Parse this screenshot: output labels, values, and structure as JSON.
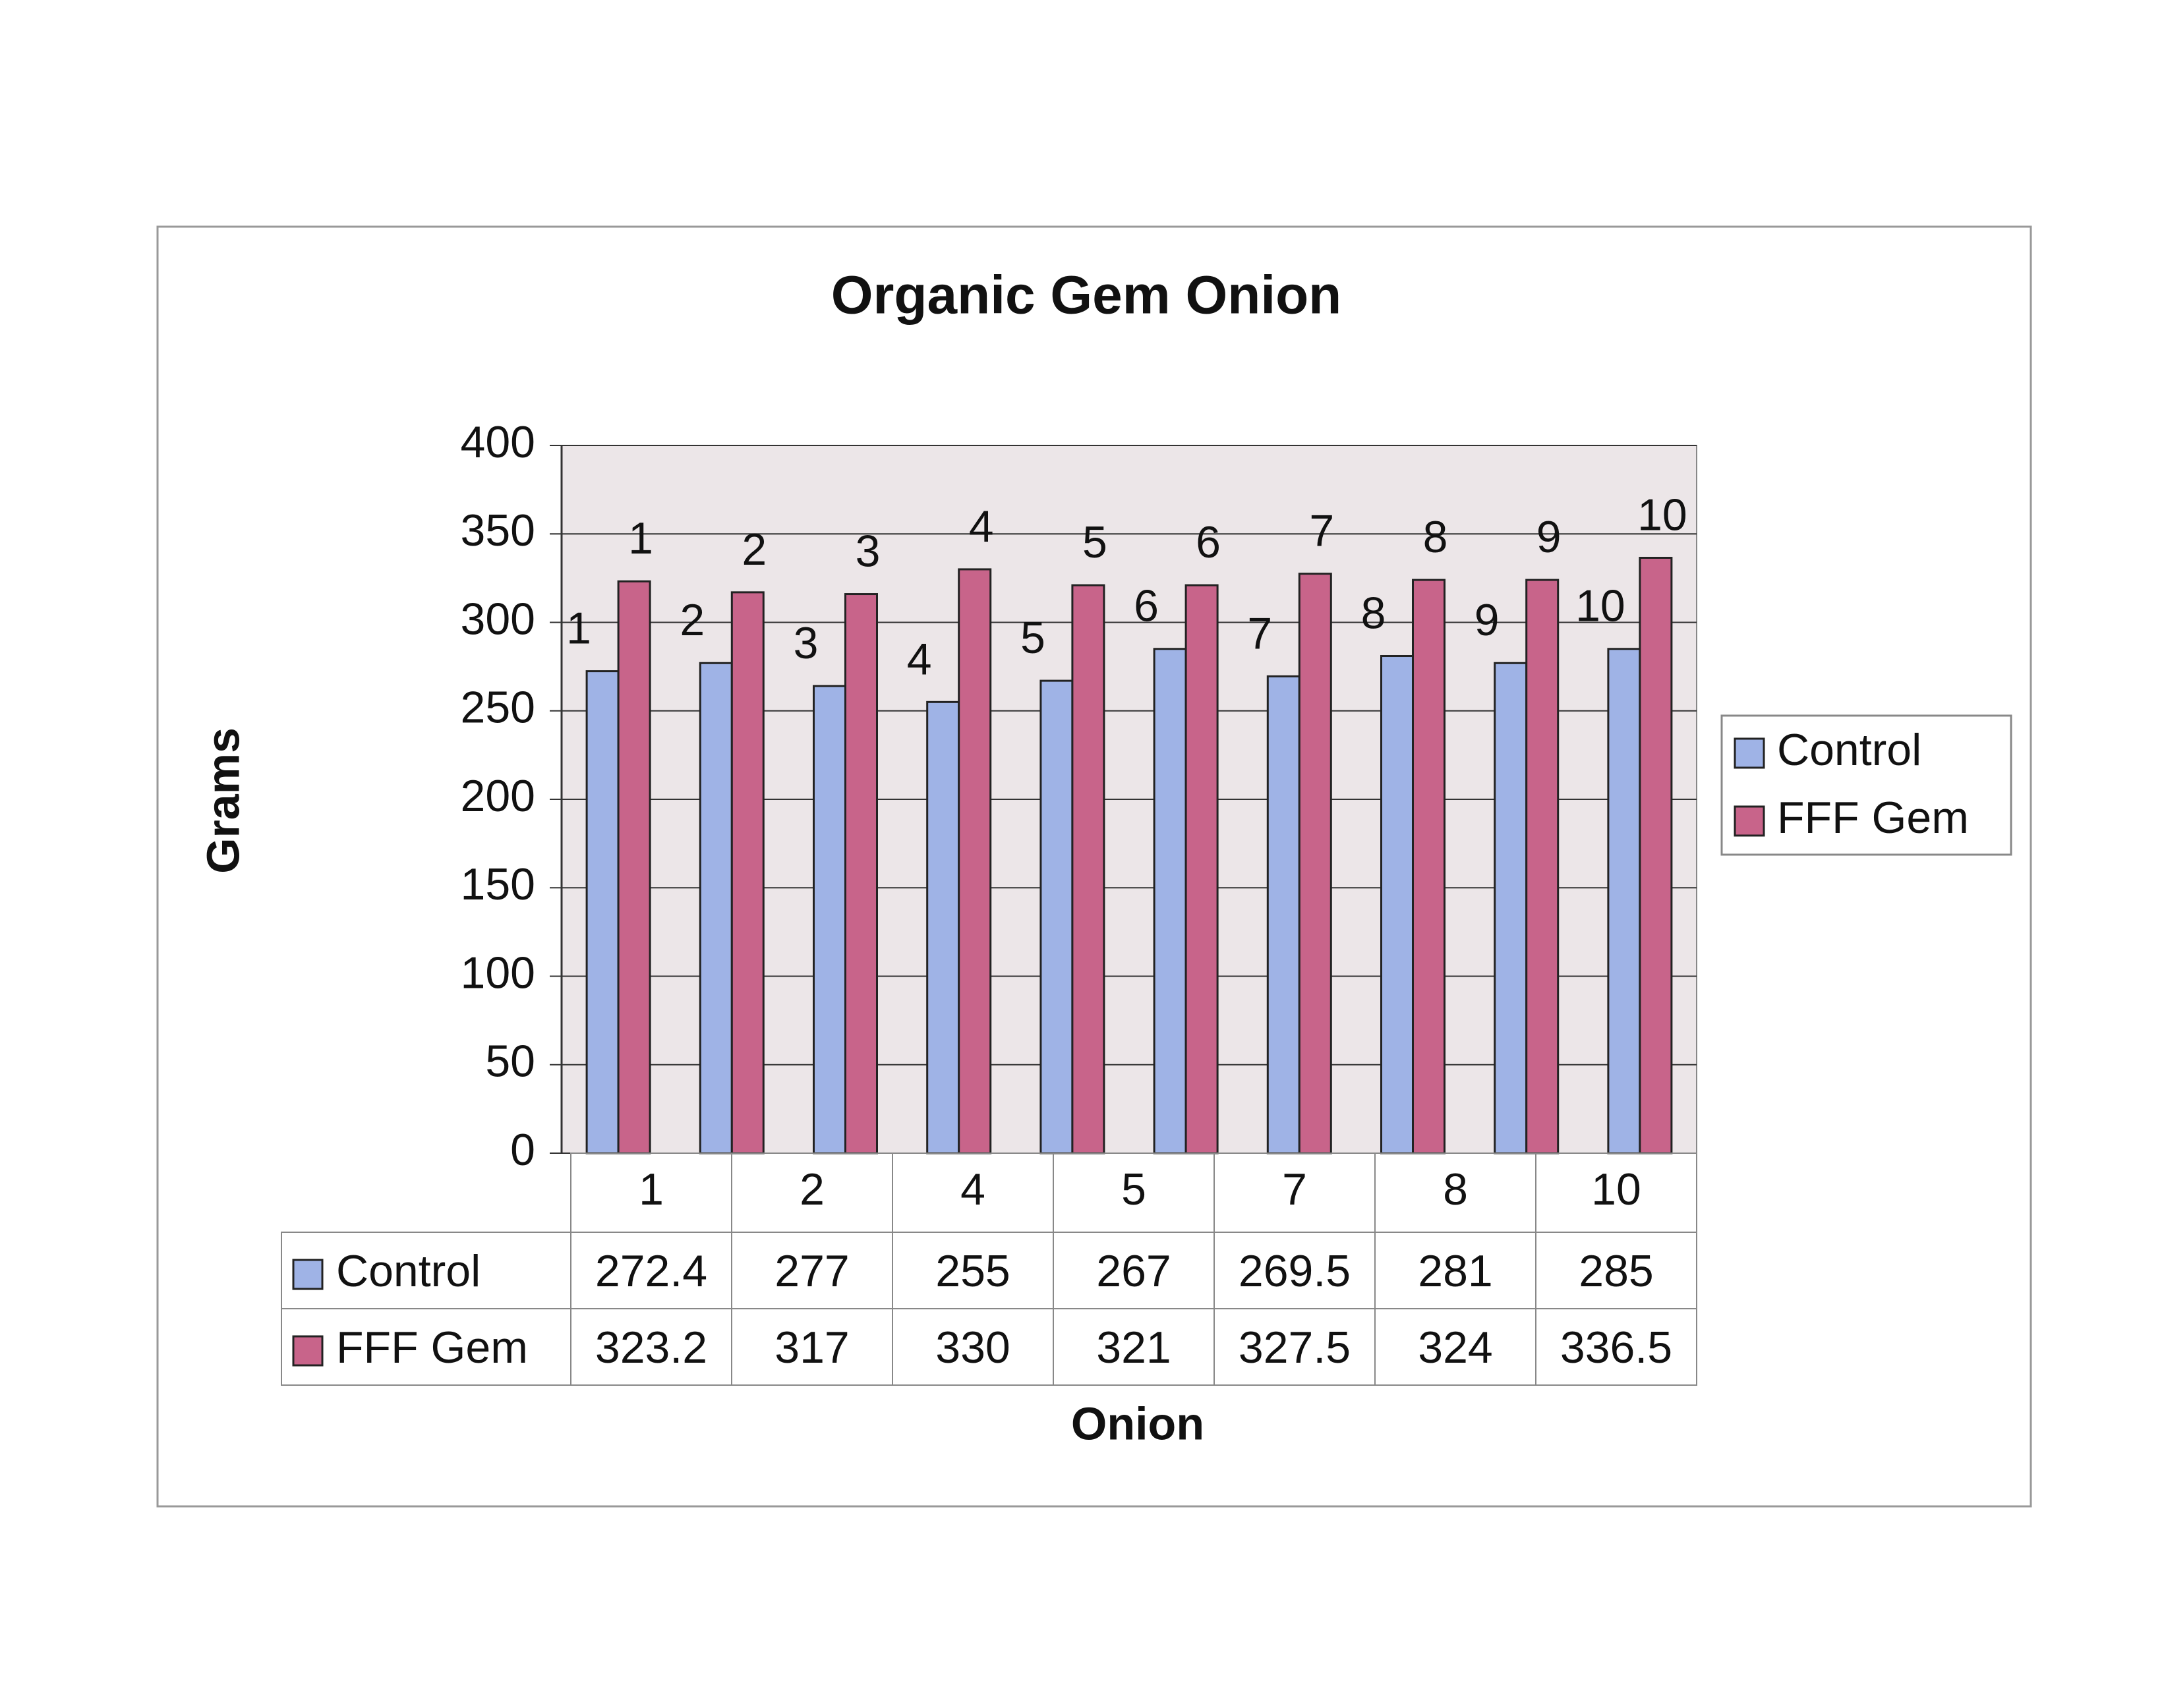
{
  "chart_data": {
    "type": "bar",
    "title": "Organic Gem Onion",
    "y_label": "Grams",
    "x_label": "Onion",
    "categories": [
      "1",
      "2",
      "3",
      "4",
      "5",
      "6",
      "7",
      "8",
      "9",
      "10"
    ],
    "series": [
      {
        "name": "Control",
        "color": "#9fb3e6",
        "values": [
          272.4,
          277,
          264,
          255,
          267,
          285,
          269.5,
          281,
          277,
          285
        ]
      },
      {
        "name": "FFF Gem",
        "color": "#c8648a",
        "values": [
          323.2,
          317,
          316,
          330,
          321,
          321,
          327.5,
          324,
          324,
          336.5
        ]
      }
    ],
    "ylim": [
      0,
      400
    ],
    "yticks": [
      0,
      50,
      100,
      150,
      200,
      250,
      300,
      350,
      400
    ],
    "grid": true,
    "legend": "right",
    "data_table": {
      "columns": [
        "1",
        "2",
        "4",
        "5",
        "7",
        "8",
        "10"
      ],
      "rows": [
        [
          272.4,
          277,
          255,
          267,
          269.5,
          281,
          285
        ],
        [
          323.2,
          317,
          330,
          321,
          327.5,
          324,
          336.5
        ]
      ]
    }
  }
}
